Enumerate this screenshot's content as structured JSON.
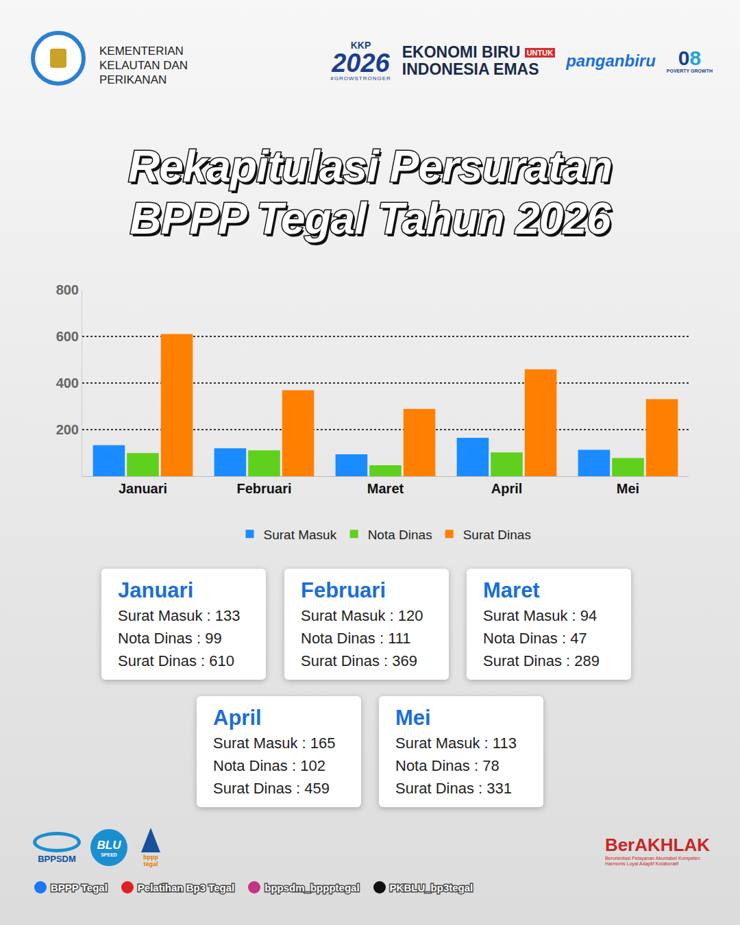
{
  "header": {
    "ministry": [
      "KEMENTERIAN",
      "KELAUTAN DAN",
      "PERIKANAN"
    ],
    "kkp": "KKP",
    "year": "2026",
    "hashtag": "#GROWSTRONGER",
    "slogan_top": "EKONOMI BIRU",
    "slogan_mid": "UNTUK",
    "slogan_bottom": "INDONESIA EMAS",
    "pangan": "panganbiru",
    "poverty_num": "0",
    "growth_num": "8",
    "poverty": "POVERTY",
    "growth": "GROWTH"
  },
  "heading": [
    "Rekapitulasi Persuratan",
    "BPPP Tegal Tahun 2026"
  ],
  "chart_data": {
    "type": "bar",
    "categories": [
      "Januari",
      "Februari",
      "Maret",
      "April",
      "Mei"
    ],
    "series": [
      {
        "name": "Surat Masuk",
        "color": "#1a8cff",
        "values": [
          133,
          120,
          94,
          165,
          113
        ]
      },
      {
        "name": "Nota Dinas",
        "color": "#5fd01c",
        "values": [
          99,
          111,
          47,
          102,
          78
        ]
      },
      {
        "name": "Surat Dinas",
        "color": "#ff8000",
        "values": [
          610,
          369,
          289,
          459,
          331
        ]
      }
    ],
    "ylim": [
      0,
      800
    ],
    "yticks": [
      200,
      400,
      600,
      800
    ],
    "grid": true,
    "legend": "bottom"
  },
  "cards": [
    {
      "month": "Januari",
      "lines": [
        "Surat Masuk : 133",
        "Nota Dinas : 99",
        "Surat Dinas : 610"
      ]
    },
    {
      "month": "Februari",
      "lines": [
        "Surat Masuk : 120",
        "Nota Dinas : 111",
        "Surat Dinas : 369"
      ]
    },
    {
      "month": "Maret",
      "lines": [
        "Surat Masuk : 94",
        "Nota Dinas : 47",
        "Surat Dinas : 289"
      ]
    },
    {
      "month": "April",
      "lines": [
        "Surat Masuk : 165",
        "Nota Dinas : 102",
        "Surat Dinas : 459"
      ]
    },
    {
      "month": "Mei",
      "lines": [
        "Surat Masuk : 113",
        "Nota Dinas : 78",
        "Surat Dinas : 331"
      ]
    }
  ],
  "footer": {
    "logos": [
      "BPPSDM",
      "BLU",
      "SPEED",
      "bppp tegal"
    ],
    "brand": "BerAKHLAK",
    "brand_lines": [
      "Berorientasi Pelayanan Akuntabel Kompeten",
      "Harmonis Loyal Adaptif Kolaboratif"
    ],
    "social": [
      "BPPP Tegal",
      "Pelatihan Bp3 Tegal",
      "bppsdm_bppptegal",
      "PKBLU_bp3tegal"
    ]
  }
}
